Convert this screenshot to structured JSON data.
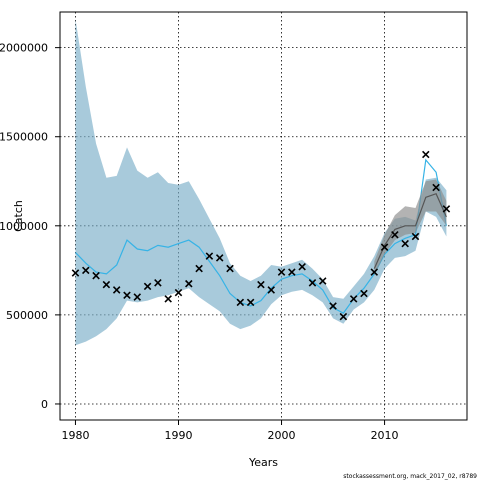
{
  "chart_data": {
    "type": "line",
    "title": "",
    "xlabel": "Years",
    "ylabel": "Catch",
    "xlim": [
      1978.5,
      2018
    ],
    "ylim": [
      -90000,
      2200000
    ],
    "x_ticks": [
      1980,
      1990,
      2000,
      2010
    ],
    "y_ticks": [
      0,
      500000,
      1000000,
      1500000,
      2000000
    ],
    "grid": "dotted",
    "footer": "stockassessment.org, mack_2017_02, r8789",
    "colors": {
      "band_blue": "#7aaec8",
      "line_blue": "#36b3e6",
      "band_grey": "#8a8a8a",
      "line_grey": "#555555",
      "observed": "#000000",
      "grid": "#000000"
    },
    "series": [
      {
        "type": "band",
        "color": "#7aaec8",
        "x": [
          1980,
          1981,
          1982,
          1983,
          1984,
          1985,
          1986,
          1987,
          1988,
          1989,
          1990,
          1991,
          1992,
          1993,
          1994,
          1995,
          1996,
          1997,
          1998,
          1999,
          2000,
          2001,
          2002,
          2003,
          2004,
          2005,
          2006,
          2007,
          2008,
          2009,
          2010,
          2011,
          2012,
          2013,
          2014,
          2015,
          2016
        ],
        "lower": [
          330000,
          350000,
          380000,
          420000,
          480000,
          580000,
          570000,
          580000,
          600000,
          610000,
          630000,
          650000,
          600000,
          560000,
          520000,
          450000,
          420000,
          440000,
          480000,
          560000,
          610000,
          630000,
          640000,
          610000,
          570000,
          480000,
          450000,
          530000,
          570000,
          640000,
          760000,
          820000,
          830000,
          860000,
          1080000,
          1050000,
          940000
        ],
        "upper": [
          2160000,
          1780000,
          1460000,
          1270000,
          1280000,
          1440000,
          1310000,
          1270000,
          1300000,
          1240000,
          1230000,
          1250000,
          1150000,
          1040000,
          930000,
          790000,
          720000,
          690000,
          720000,
          780000,
          770000,
          790000,
          810000,
          760000,
          700000,
          600000,
          590000,
          660000,
          730000,
          830000,
          960000,
          1040000,
          1050000,
          1030000,
          1260000,
          1270000,
          1200000
        ]
      },
      {
        "type": "line",
        "color": "#36b3e6",
        "x": [
          1980,
          1981,
          1982,
          1983,
          1984,
          1985,
          1986,
          1987,
          1988,
          1989,
          1990,
          1991,
          1992,
          1993,
          1994,
          1995,
          1996,
          1997,
          1998,
          1999,
          2000,
          2001,
          2002,
          2003,
          2004,
          2005,
          2006,
          2007,
          2008,
          2009,
          2010,
          2011,
          2012,
          2013,
          2014,
          2015,
          2016
        ],
        "y": [
          850000,
          790000,
          740000,
          730000,
          780000,
          920000,
          870000,
          860000,
          890000,
          880000,
          900000,
          920000,
          880000,
          800000,
          720000,
          620000,
          570000,
          550000,
          580000,
          650000,
          700000,
          720000,
          730000,
          690000,
          640000,
          540000,
          510000,
          590000,
          650000,
          730000,
          840000,
          900000,
          930000,
          950000,
          1370000,
          1300000,
          1000000
        ]
      },
      {
        "type": "band",
        "color": "#8a8a8a",
        "x": [
          2009,
          2010,
          2011,
          2012,
          2013,
          2014,
          2015,
          2016
        ],
        "lower": [
          720000,
          840000,
          920000,
          950000,
          960000,
          1080000,
          1080000,
          1000000
        ],
        "upper": [
          800000,
          950000,
          1060000,
          1110000,
          1100000,
          1250000,
          1260000,
          1140000
        ]
      },
      {
        "type": "line",
        "color": "#555555",
        "x": [
          2009,
          2010,
          2011,
          2012,
          2013,
          2014,
          2015,
          2016
        ],
        "y": [
          760000,
          890000,
          980000,
          1000000,
          1000000,
          1160000,
          1180000,
          1050000
        ]
      },
      {
        "type": "points",
        "marker": "x",
        "color": "#000000",
        "x": [
          1980,
          1981,
          1982,
          1983,
          1984,
          1985,
          1986,
          1987,
          1988,
          1989,
          1990,
          1991,
          1992,
          1993,
          1994,
          1995,
          1996,
          1997,
          1998,
          1999,
          2000,
          2001,
          2002,
          2003,
          2004,
          2005,
          2006,
          2007,
          2008,
          2009,
          2010,
          2011,
          2012,
          2013,
          2014,
          2015,
          2016
        ],
        "y": [
          735000,
          750000,
          720000,
          670000,
          640000,
          610000,
          600000,
          660000,
          680000,
          590000,
          625000,
          675000,
          760000,
          830000,
          820000,
          760000,
          570000,
          570000,
          670000,
          640000,
          740000,
          740000,
          770000,
          680000,
          690000,
          550000,
          490000,
          590000,
          620000,
          740000,
          880000,
          950000,
          900000,
          940000,
          1400000,
          1215000,
          1095000
        ]
      }
    ]
  }
}
